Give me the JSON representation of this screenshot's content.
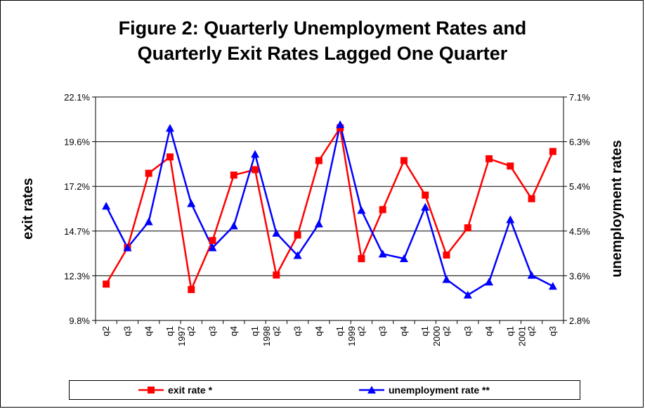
{
  "chart_data": {
    "type": "line",
    "title_lines": [
      "Figure 2: Quarterly Unemployment Rates and",
      "Quarterly Exit Rates Lagged One Quarter"
    ],
    "ylabel_left": "exit rates",
    "ylabel_right": "unemployment rates",
    "y_left_ticks": [
      "22.1%",
      "19.6%",
      "17.2%",
      "14.7%",
      "12.3%",
      "9.8%"
    ],
    "y_right_ticks": [
      "7.1%",
      "6.3%",
      "5.4%",
      "4.5%",
      "3.6%",
      "2.8%"
    ],
    "y_left_range": [
      9.8,
      22.1
    ],
    "y_right_range": [
      2.8,
      7.1
    ],
    "x": [
      "q2",
      "q3",
      "q4",
      "1997 q1",
      "q2",
      "q3",
      "q4",
      "1998 q1",
      "q2",
      "q3",
      "q4",
      "1999 q1",
      "q2",
      "q3",
      "q4",
      "2000 q1",
      "q2",
      "q3",
      "q4",
      "2001 q1",
      "q2",
      "q3"
    ],
    "x_label_lines": [
      [
        "q2"
      ],
      [
        "q3"
      ],
      [
        "q4"
      ],
      [
        "q1",
        "1997"
      ],
      [
        "q2"
      ],
      [
        "q3"
      ],
      [
        "q4"
      ],
      [
        "q1",
        "1998"
      ],
      [
        "q2"
      ],
      [
        "q3"
      ],
      [
        "q4"
      ],
      [
        "q1",
        "1999"
      ],
      [
        "q2"
      ],
      [
        "q3"
      ],
      [
        "q4"
      ],
      [
        "q1",
        "2000"
      ],
      [
        "q2"
      ],
      [
        "q3"
      ],
      [
        "q4"
      ],
      [
        "q1",
        "2001"
      ],
      [
        "q2"
      ],
      [
        "q3"
      ]
    ],
    "grid": true,
    "legend_position": "bottom",
    "series": [
      {
        "name": "exit rate *",
        "axis": "left",
        "color": "#ff0000",
        "marker": "square",
        "values": [
          11.8,
          13.8,
          17.9,
          18.8,
          11.5,
          14.2,
          17.8,
          18.1,
          12.3,
          14.5,
          18.6,
          20.4,
          13.2,
          15.9,
          18.6,
          16.7,
          13.4,
          14.9,
          18.7,
          18.3,
          16.5,
          19.1
        ]
      },
      {
        "name": "unemployment rate **",
        "axis": "right",
        "color": "#0000ff",
        "marker": "triangle",
        "values": [
          5.0,
          4.2,
          4.7,
          6.5,
          5.05,
          4.2,
          4.62,
          6.0,
          4.48,
          4.05,
          4.66,
          6.57,
          4.92,
          4.08,
          3.99,
          4.98,
          3.59,
          3.29,
          3.54,
          4.74,
          3.67,
          3.46
        ]
      }
    ]
  },
  "colors": {
    "plot_background": "#ffffff",
    "gridline": "#000000"
  }
}
